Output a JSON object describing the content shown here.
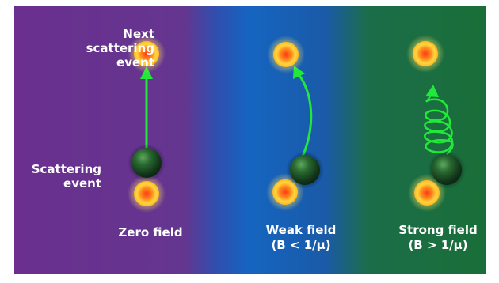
{
  "labels": {
    "next_event": [
      "Next",
      "scattering",
      "event"
    ],
    "scattering_event": [
      "Scattering",
      "event"
    ]
  },
  "panels": [
    {
      "id": "zero",
      "title": "Zero field",
      "condition": "",
      "color": "#6b2f91"
    },
    {
      "id": "weak",
      "title": "Weak field",
      "condition": "(B < 1/μ)",
      "color": "#1565c0"
    },
    {
      "id": "strong",
      "title": "Strong field",
      "condition": "(B > 1/μ)",
      "color": "#1b6e3a"
    }
  ],
  "colors": {
    "arrow": "#22e83a",
    "scatterer_core": "#ff5a1a",
    "scatterer_glow": "#ffe566",
    "electron": "#1e4d24"
  }
}
